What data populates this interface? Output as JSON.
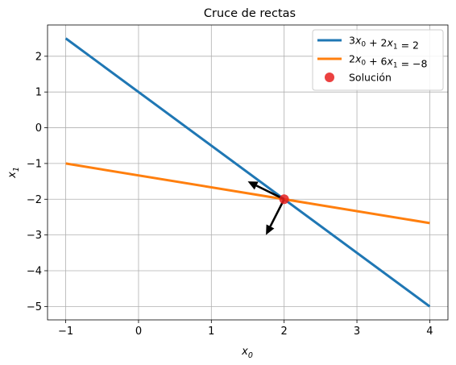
{
  "chart_data": {
    "type": "line",
    "title": "Cruce de rectas",
    "xlabel": "x0",
    "ylabel": "x1",
    "xlim": [
      -1.25,
      4.25
    ],
    "ylim": [
      -5.375,
      2.875
    ],
    "xticks": [
      -1,
      0,
      1,
      2,
      3,
      4
    ],
    "yticks": [
      2,
      1,
      0,
      -1,
      -2,
      -3,
      -4,
      -5
    ],
    "xtick_labels": [
      "−1",
      "0",
      "1",
      "2",
      "3",
      "4"
    ],
    "ytick_labels": [
      "2",
      "1",
      "0",
      "−1",
      "−2",
      "−3",
      "−4",
      "−5"
    ],
    "grid": true,
    "legend_position": "top-right",
    "series": [
      {
        "name": "3x0 + 2x1 = 2",
        "legend_parts": [
          "3",
          "x",
          "0",
          " + 2",
          "x",
          "1",
          " = 2"
        ],
        "color": "#1f77b4",
        "x": [
          -1,
          4
        ],
        "y": [
          2.5,
          -5
        ]
      },
      {
        "name": "2x0 + 6x1 = −8",
        "legend_parts": [
          "2",
          "x",
          "0",
          " + 6",
          "x",
          "1",
          " = −8"
        ],
        "color": "#ff7f0e",
        "x": [
          -1,
          4
        ],
        "y": [
          -1,
          -2.6667
        ]
      }
    ],
    "solution": {
      "name": "Solución",
      "x": 2,
      "y": -2,
      "color": "#e8201f"
    },
    "arrows": [
      {
        "from": [
          2,
          -2
        ],
        "to": [
          1.5,
          -1.5
        ],
        "color": "#000000"
      },
      {
        "from": [
          2,
          -2
        ],
        "to": [
          1.75,
          -3
        ],
        "color": "#000000"
      }
    ]
  }
}
